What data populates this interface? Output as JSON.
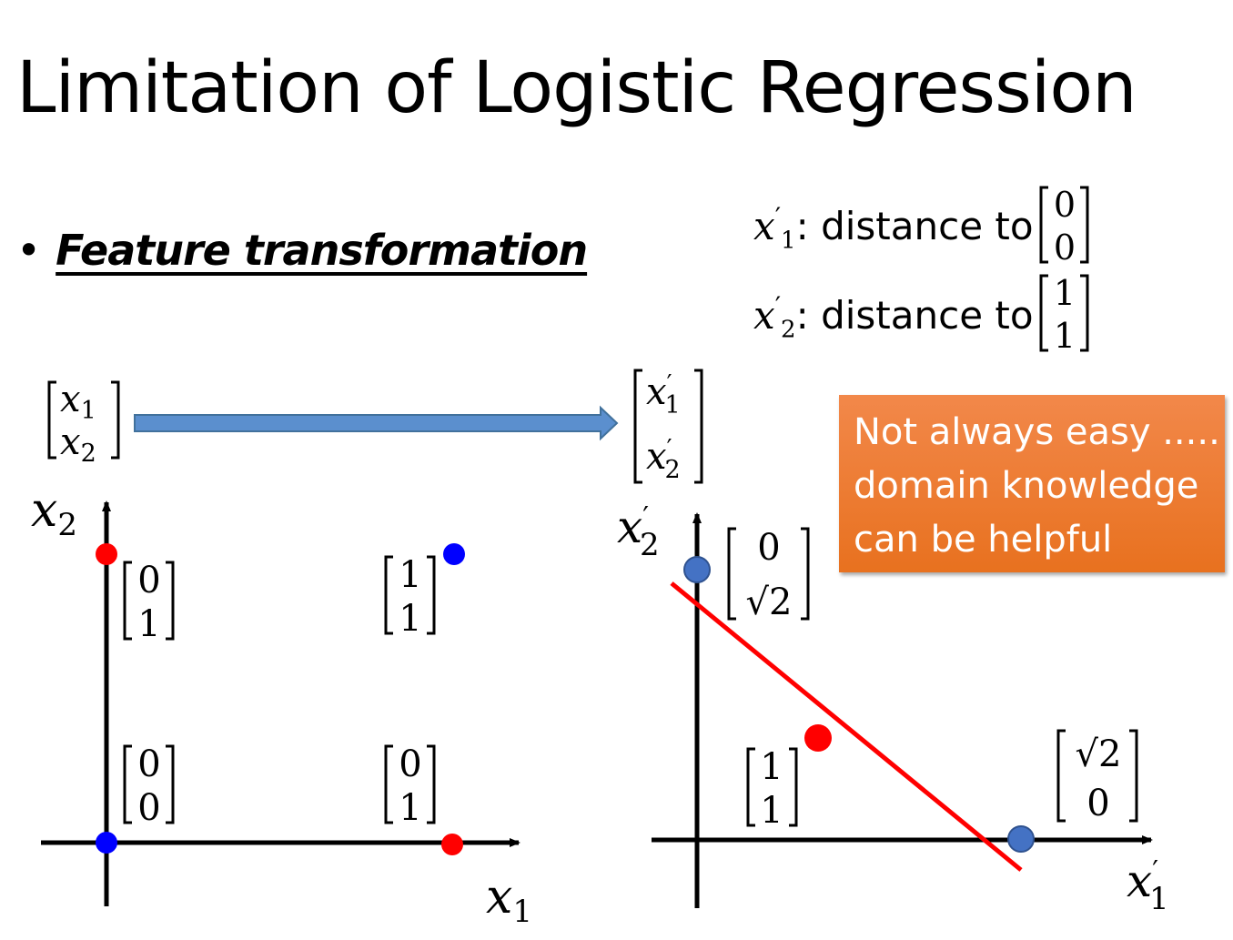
{
  "slide": {
    "title": "Limitation of Logistic Regression",
    "bullet": "Feature transformation"
  },
  "definitions": [
    {
      "symbol": "x",
      "sub": "1",
      "prime": "′",
      "text": ": distance to",
      "vector": [
        "0",
        "0"
      ]
    },
    {
      "symbol": "x",
      "sub": "2",
      "prime": "′",
      "text": ": distance to",
      "vector": [
        "1",
        "1"
      ]
    }
  ],
  "transform": {
    "input_vector": [
      "x1",
      "x2"
    ],
    "output_vector": [
      "x′1",
      "x′2"
    ],
    "arrow_color": "#5b8fce"
  },
  "callout": {
    "lines": [
      "Not always easy .....",
      "domain knowledge",
      "can be helpful"
    ],
    "color": "#ed7d31"
  },
  "left_plot": {
    "xlabel": {
      "base": "x",
      "sub": "1"
    },
    "ylabel": {
      "base": "x",
      "sub": "2"
    },
    "points": [
      {
        "vector": [
          "0",
          "1"
        ],
        "color": "red"
      },
      {
        "vector": [
          "1",
          "1"
        ],
        "color": "blue"
      },
      {
        "vector": [
          "0",
          "0"
        ],
        "color": "blue"
      },
      {
        "vector": [
          "0",
          "1"
        ],
        "color": "red",
        "note": "bottom-right point labeled [0;1]"
      }
    ],
    "point_labels": [
      [
        "0",
        "1"
      ],
      [
        "1",
        "1"
      ],
      [
        "0",
        "0"
      ],
      [
        "0",
        "1"
      ]
    ]
  },
  "right_plot": {
    "xlabel": {
      "base": "x",
      "prime": "′",
      "sub": "1"
    },
    "ylabel": {
      "base": "x",
      "prime": "′",
      "sub": "2"
    },
    "point_labels": [
      [
        "0",
        "√2"
      ],
      [
        "1",
        "1"
      ],
      [
        "√2",
        "0"
      ]
    ],
    "point_colors": [
      "#4472c4",
      "red",
      "#4472c4"
    ],
    "boundary_color": "red"
  }
}
